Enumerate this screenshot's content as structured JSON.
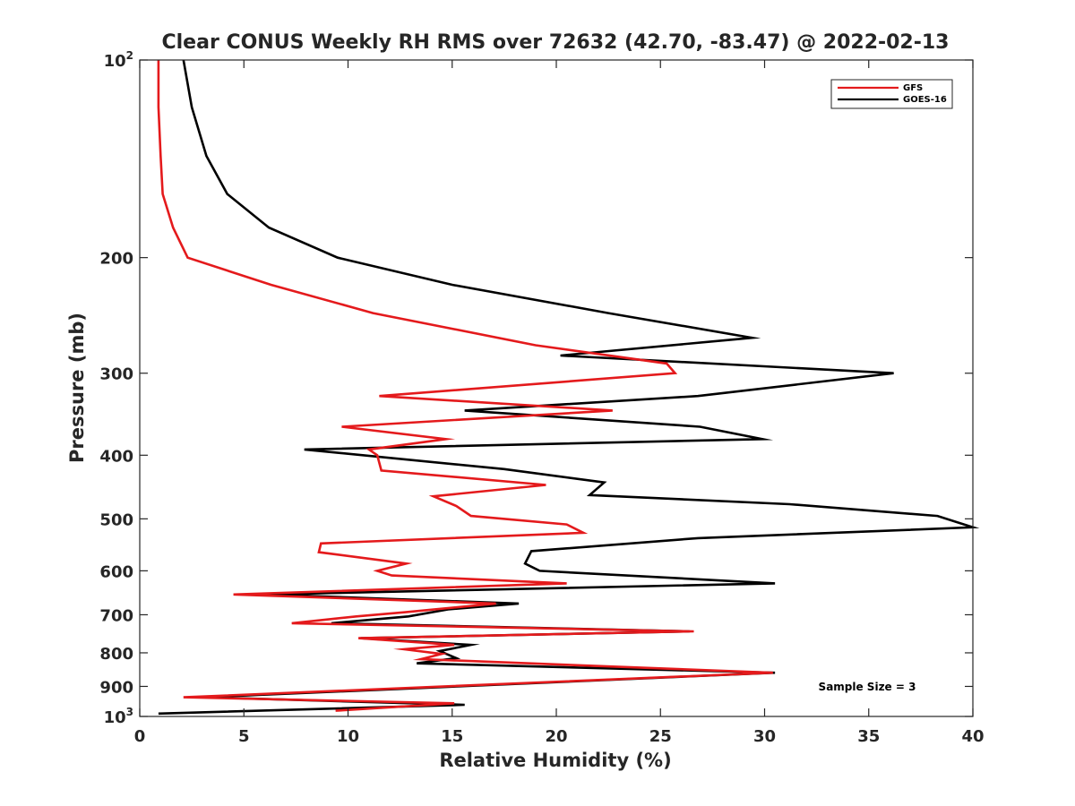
{
  "chart_data": {
    "type": "line",
    "title": "Clear CONUS Weekly RH RMS over 72632 (42.70, -83.47) @ 2022-02-13",
    "xlabel": "Relative Humidity (%)",
    "ylabel": "Pressure (mb)",
    "xlim": [
      0,
      40
    ],
    "ylim": [
      100,
      1000
    ],
    "yscale": "log",
    "y_reversed": true,
    "xticks": [
      "0",
      "5",
      "10",
      "15",
      "20",
      "25",
      "30",
      "35",
      "40"
    ],
    "yticks": [
      {
        "value": 100,
        "base": "10",
        "exp": "2"
      },
      {
        "value": 200,
        "label": "200"
      },
      {
        "value": 300,
        "label": "300"
      },
      {
        "value": 400,
        "label": "400"
      },
      {
        "value": 500,
        "label": "500"
      },
      {
        "value": 600,
        "label": "600"
      },
      {
        "value": 700,
        "label": "700"
      },
      {
        "value": 800,
        "label": "800"
      },
      {
        "value": 900,
        "label": "900"
      },
      {
        "value": 1000,
        "base": "10",
        "exp": "3"
      }
    ],
    "legend_position": "top-right",
    "annotation": "Sample Size = 3",
    "grid": false,
    "series": [
      {
        "name": "GFS",
        "color": "#e41a1c",
        "x": [
          0.9,
          0.9,
          1.0,
          1.1,
          1.6,
          2.3,
          6.3,
          11.2,
          19.0,
          25.3,
          25.7,
          11.5,
          22.7,
          9.7,
          14.7,
          11.0,
          11.4,
          11.6,
          19.5,
          14.1,
          15.2,
          15.9,
          20.5,
          21.3,
          8.7,
          8.6,
          12.8,
          11.4,
          12.1,
          20.5,
          4.5,
          17.1,
          12.7,
          10.4,
          7.3,
          26.6,
          10.5,
          15.1,
          12.7,
          14.5,
          13.5,
          30.4,
          2.1,
          15.1,
          9.4
        ],
        "y": [
          100,
          118,
          140,
          160,
          180,
          200,
          220,
          243,
          272,
          290,
          300,
          325,
          342,
          362,
          378,
          392,
          400,
          422,
          444,
          462,
          478,
          495,
          510,
          525,
          545,
          562,
          585,
          600,
          610,
          627,
          652,
          673,
          694,
          704,
          721,
          742,
          760,
          778,
          790,
          803,
          818,
          858,
          935,
          955,
          980
        ]
      },
      {
        "name": "GOES-16",
        "color": "#000000",
        "x": [
          2.1,
          2.5,
          3.2,
          4.2,
          6.2,
          9.5,
          15.0,
          22.5,
          29.4,
          20.2,
          36.2,
          26.8,
          15.6,
          26.9,
          29.9,
          7.9,
          17.5,
          22.3,
          21.6,
          31.2,
          38.3,
          40.0,
          26.8,
          18.8,
          18.5,
          19.2,
          30.5,
          6.1,
          18.2,
          14.8,
          12.9,
          9.2,
          26.4,
          10.6,
          15.9,
          14.4,
          15.2,
          13.3,
          30.5,
          3.1,
          15.6,
          0.9
        ],
        "y": [
          100,
          118,
          140,
          160,
          180,
          200,
          220,
          243,
          265,
          282,
          300,
          325,
          342,
          362,
          378,
          392,
          420,
          440,
          460,
          475,
          495,
          515,
          535,
          560,
          585,
          600,
          627,
          652,
          673,
          687,
          704,
          721,
          742,
          760,
          778,
          795,
          815,
          830,
          858,
          935,
          960,
          990
        ]
      }
    ]
  }
}
